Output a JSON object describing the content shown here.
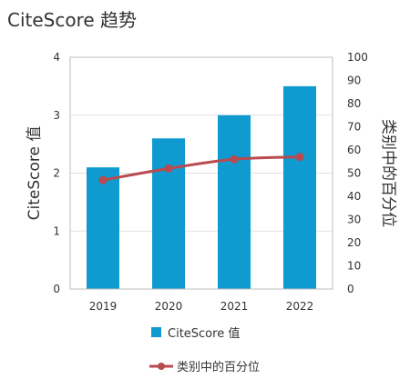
{
  "chart_data": {
    "type": "bar",
    "title": "CiteScore 趋势",
    "categories": [
      "2019",
      "2020",
      "2021",
      "2022"
    ],
    "series": [
      {
        "name": "CiteScore 值",
        "type": "bar",
        "axis": "left",
        "values": [
          2.1,
          2.6,
          3.0,
          3.5
        ],
        "color": "#0f9ad0"
      },
      {
        "name": "类别中的百分位",
        "type": "line",
        "axis": "right",
        "values": [
          47,
          52,
          56,
          57
        ],
        "color": "#b94a4f"
      }
    ],
    "ylabel": "CiteScore 值",
    "ylim": [
      0,
      4
    ],
    "yticks": [
      "0",
      "1",
      "2",
      "3",
      "4"
    ],
    "y2label": "类别中的百分位",
    "y2lim": [
      0,
      100
    ],
    "y2ticks": [
      "0",
      "10",
      "20",
      "30",
      "40",
      "50",
      "60",
      "70",
      "80",
      "90",
      "100"
    ],
    "grid": true,
    "legend_position": "bottom"
  }
}
